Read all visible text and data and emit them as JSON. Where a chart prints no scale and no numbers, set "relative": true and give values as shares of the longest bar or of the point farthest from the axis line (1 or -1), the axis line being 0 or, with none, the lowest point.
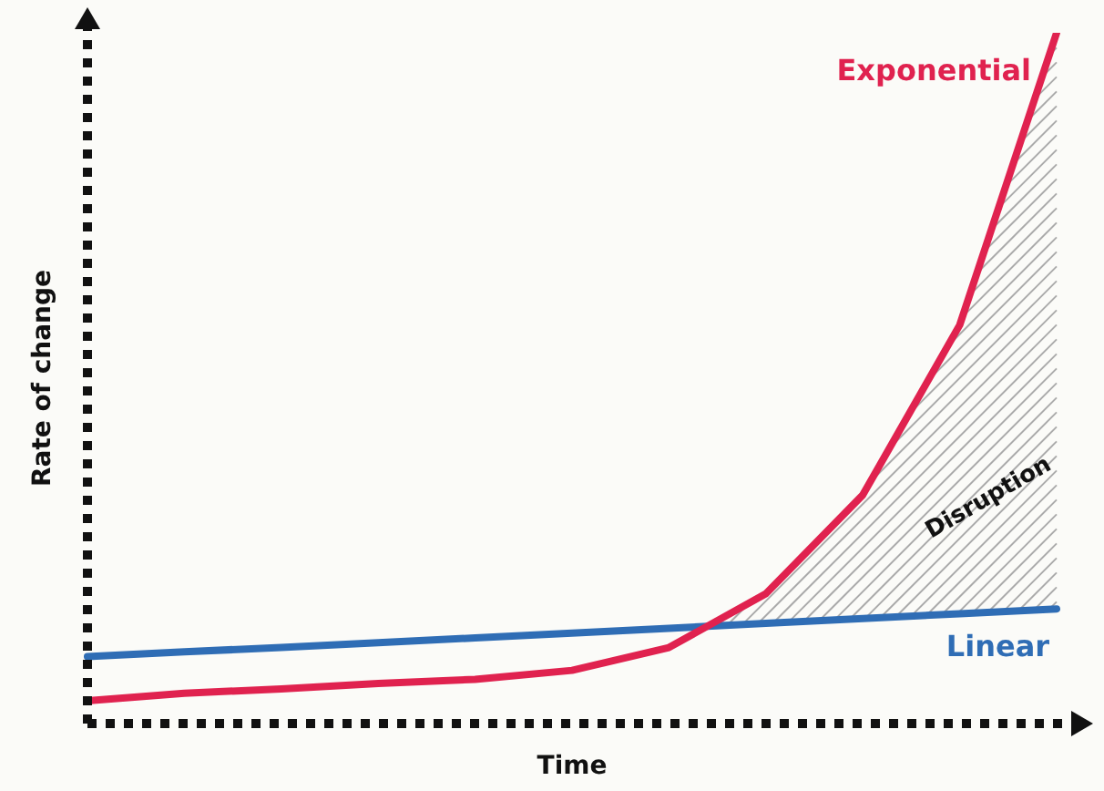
{
  "chart_data": {
    "type": "line",
    "relative": true,
    "xlabel": "Time",
    "ylabel": "Rate of change",
    "categories": [
      null,
      null,
      null,
      null,
      null,
      null,
      null,
      null,
      null,
      null,
      null
    ],
    "series": [
      {
        "name": "Exponential",
        "color": "#e0224f",
        "values": [
          0.033,
          0.044,
          0.05,
          0.058,
          0.064,
          0.077,
          0.11,
          0.188,
          0.331,
          0.577,
          1
        ]
      },
      {
        "name": "Linear",
        "color": "#2f6db5",
        "values": [
          0.097,
          0.104,
          0.11,
          0.117,
          0.124,
          0.131,
          0.138,
          0.145,
          0.152,
          0.159,
          0.166
        ]
      }
    ],
    "annotations": [
      "Disruption"
    ],
    "legend": false,
    "marker": "none",
    "line_style": "solid"
  }
}
